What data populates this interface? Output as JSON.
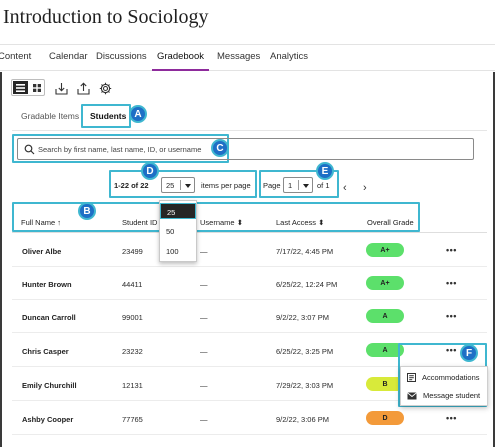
{
  "course": {
    "title": "Introduction to Sociology"
  },
  "nav": {
    "tabs": [
      "Content",
      "Calendar",
      "Discussions",
      "Gradebook",
      "Messages",
      "Analytics"
    ],
    "active": "Gradebook"
  },
  "toolbar": {
    "icons": [
      "list-view-icon",
      "grid-view-icon",
      "download-icon",
      "upload-icon",
      "settings-gear-icon"
    ]
  },
  "subtabs": {
    "items": [
      "Gradable Items",
      "Students"
    ],
    "active": "Students"
  },
  "search": {
    "placeholder": "Search by first name, last name, ID, or username"
  },
  "pagination": {
    "range": "1-22 of 22",
    "per_page_value": "25",
    "per_page_label": "items per page",
    "per_page_options": [
      "25",
      "50",
      "100"
    ],
    "page_label": "Page",
    "page_value": "1",
    "page_total": "of 1"
  },
  "table": {
    "headers": [
      "Full Name",
      "Student ID",
      "Username",
      "Last Access",
      "Overall Grade"
    ],
    "rows": [
      {
        "name": "Oliver Albe",
        "id": "23499",
        "username": "—",
        "last_access": "7/17/22, 4:45 PM",
        "grade": "A+",
        "grade_color": "#5ce06b"
      },
      {
        "name": "Hunter Brown",
        "id": "44411",
        "username": "—",
        "last_access": "6/25/22, 12:24 PM",
        "grade": "A+",
        "grade_color": "#5ce06b"
      },
      {
        "name": "Duncan Carroll",
        "id": "99001",
        "username": "—",
        "last_access": "9/2/22, 3:07 PM",
        "grade": "A",
        "grade_color": "#5ce06b"
      },
      {
        "name": "Chris Casper",
        "id": "23232",
        "username": "—",
        "last_access": "6/25/22, 3:25 PM",
        "grade": "A",
        "grade_color": "#5ce06b"
      },
      {
        "name": "Emily Churchill",
        "id": "12131",
        "username": "—",
        "last_access": "7/29/22, 3:03 PM",
        "grade": "B",
        "grade_color": "#d8ea3a"
      },
      {
        "name": "Ashby Cooper",
        "id": "77765",
        "username": "—",
        "last_access": "9/2/22, 3:06 PM",
        "grade": "D",
        "grade_color": "#f39a3a"
      }
    ]
  },
  "context_menu": {
    "items": [
      "Accommodations",
      "Message student"
    ]
  },
  "callouts": {
    "labels": [
      "A",
      "B",
      "C",
      "D",
      "E",
      "F"
    ],
    "color": "#3fb7d0",
    "badge_color": "#1e6fc6"
  },
  "colors": {
    "accent": "#8e2b9c"
  }
}
